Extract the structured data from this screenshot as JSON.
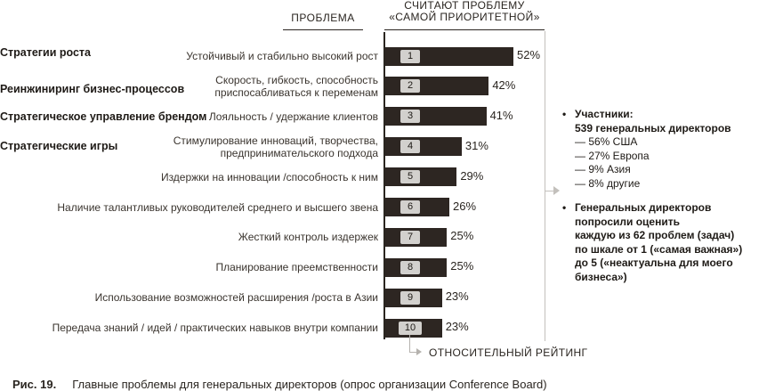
{
  "header": {
    "problem_column": "ПРОБЛЕМА",
    "voters_column_line1": "СЧИТАЮТ ПРОБЛЕМУ",
    "voters_column_line2": "«САМОЙ ПРИОРИТЕТНОЙ»"
  },
  "categories": [
    "Стратегии роста",
    "Реинжиниринг бизнес-процессов",
    "Стратегическое управление брендом",
    "Стратегические игры"
  ],
  "chart_data": {
    "type": "bar",
    "orientation": "horizontal",
    "categories": [
      "Устойчивый и стабильно высокий рост",
      "Скорость, гибкость, способность приспосабливаться к переменам",
      "Лояльность / удержание клиентов",
      "Стимулирование инноваций, творчества, предпринимательского подхода",
      "Издержки на инновации /способность к ним",
      "Наличие талантливых руководителей среднего и высшего звена",
      "Жесткий контроль издержек",
      "Планирование преемственности",
      "Использование возможностей расширения /роста в Азии",
      "Передача знаний / идей / практических навыков внутри компании"
    ],
    "category_lines": [
      [
        "Устойчивый и стабильно высокий рост"
      ],
      [
        "Скорость, гибкость, способность",
        "приспосабливаться к переменам"
      ],
      [
        "Лояльность / удержание клиентов"
      ],
      [
        "Стимулирование инноваций, творчества,",
        "предпринимательского подхода"
      ],
      [
        "Издержки на инновации /способность к ним"
      ],
      [
        "Наличие талантливых руководителей среднего и высшего звена"
      ],
      [
        "Жесткий контроль издержек"
      ],
      [
        "Планирование преемственности"
      ],
      [
        "Использование возможностей расширения /роста в Азии"
      ],
      [
        "Передача знаний / идей / практических навыков внутри компании"
      ]
    ],
    "ranks": [
      "1",
      "2",
      "3",
      "4",
      "5",
      "6",
      "7",
      "8",
      "9",
      "10"
    ],
    "values": [
      52,
      42,
      41,
      31,
      29,
      26,
      25,
      25,
      23,
      23
    ],
    "value_labels": [
      "52%",
      "42%",
      "41%",
      "31%",
      "29%",
      "26%",
      "25%",
      "25%",
      "23%",
      "23%"
    ],
    "xlabel": "ОТНОСИТЕЛЬНЫЙ РЕЙТИНГ",
    "colors": {
      "bar": "#2d2622",
      "rank_box": "#d2d0cd"
    }
  },
  "notes": {
    "participants_title": "Участники:",
    "participants_count": "539 генеральных директоров",
    "breakdown": [
      "— 56% США",
      "— 27% Европа",
      "— 9% Азия",
      "— 8% другие"
    ],
    "method_lines": [
      "Генеральных директоров",
      "попросили оценить",
      "каждую из 62 проблем (задач)",
      "по шкале от 1 («самая важная»)",
      "до 5 («неактуальна для моего бизнеса»)"
    ]
  },
  "caption": {
    "figure_label": "Рис. 19.",
    "text": "Главные проблемы для генеральных директоров (опрос организации Conference Board)"
  }
}
